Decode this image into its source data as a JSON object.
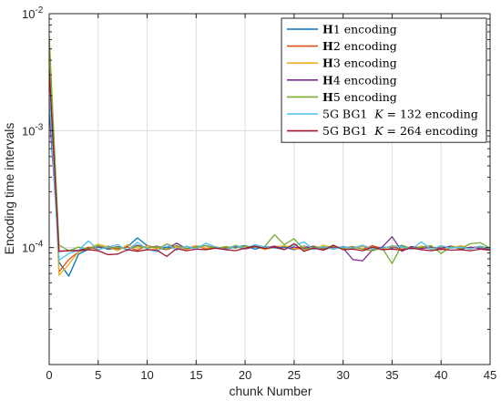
{
  "chart_data": {
    "type": "line",
    "title": "",
    "xlabel": "chunk Number",
    "ylabel": "Encoding time intervals",
    "xlim": [
      0,
      45
    ],
    "ylim": [
      1e-05,
      0.01
    ],
    "yscale": "log",
    "xticks": [
      0,
      5,
      10,
      15,
      20,
      25,
      30,
      35,
      40,
      45
    ],
    "yticks": [
      {
        "value": 0.0001,
        "base": "10",
        "exp": "-4"
      },
      {
        "value": 0.001,
        "base": "10",
        "exp": "-3"
      },
      {
        "value": 0.01,
        "base": "10",
        "exp": "-2"
      }
    ],
    "grid": true,
    "legend_position": "top-right",
    "x": [
      0,
      1,
      2,
      3,
      4,
      5,
      6,
      7,
      8,
      9,
      10,
      11,
      12,
      13,
      14,
      15,
      16,
      17,
      18,
      19,
      20,
      21,
      22,
      23,
      24,
      25,
      26,
      27,
      28,
      29,
      30,
      31,
      32,
      33,
      34,
      35,
      36,
      37,
      38,
      39,
      40,
      41,
      42,
      43,
      44,
      45
    ],
    "series": [
      {
        "name": "H1 encoding",
        "bold": "H",
        "rest": "1 encoding",
        "color": "#0072BD",
        "values": [
          0.0035,
          7.5e-05,
          5.7e-05,
          8.8e-05,
          9.7e-05,
          0.000103,
          9.7e-05,
          9.8e-05,
          0.000102,
          0.000121,
          0.000104,
          9.8e-05,
          0.000101,
          0.000103,
          9.7e-05,
          0.000102,
          0.000104,
          9.9e-05,
          9.7e-05,
          0.000101,
          0.000104,
          9.7e-05,
          0.000102,
          9.9e-05,
          0.000101,
          9.6e-05,
          0.000103,
          9.9e-05,
          0.000101,
          9.7e-05,
          0.000102,
          9.8e-05,
          0.000103,
          9.7e-05,
          0.000101,
          9.9e-05,
          0.000104,
          9.8e-05,
          0.000102,
          9.7e-05,
          0.000101,
          9.9e-05,
          0.000103,
          9.8e-05,
          0.000101,
          9.7e-05
        ]
      },
      {
        "name": "H2 encoding",
        "bold": "H",
        "rest": "2 encoding",
        "color": "#D95319",
        "values": [
          0.006,
          6.2e-05,
          7.9e-05,
          9.2e-05,
          0.000101,
          9.6e-05,
          0.000103,
          9.7e-05,
          0.000101,
          9.5e-05,
          0.000104,
          9.9e-05,
          9.6e-05,
          0.000102,
          9.8e-05,
          0.000104,
          9.7e-05,
          0.000101,
          9.9e-05,
          0.000103,
          9.7e-05,
          0.000102,
          9.8e-05,
          0.000101,
          0.000104,
          9.7e-05,
          9.9e-05,
          0.000103,
          9.6e-05,
          0.000101,
          9.9e-05,
          0.000102,
          9.7e-05,
          0.000104,
          9.8e-05,
          0.000101,
          9.7e-05,
          0.000102,
          9.9e-05,
          0.000101,
          9.6e-05,
          0.000103,
          9.8e-05,
          0.0001,
          0.000102,
          9.7e-05
        ]
      },
      {
        "name": "H3 encoding",
        "bold": "H",
        "rest": "3 encoding",
        "color": "#EDB120",
        "values": [
          0.0052,
          5.8e-05,
          7.2e-05,
          9.2e-05,
          9.9e-05,
          0.000107,
          0.000101,
          9.4e-05,
          0.000106,
          9.9e-05,
          0.000103,
          9.7e-05,
          0.000108,
          0.000101,
          9.6e-05,
          0.000104,
          9.9e-05,
          0.000102,
          9.7e-05,
          0.000105,
          9.9e-05,
          0.000103,
          9.6e-05,
          0.000101,
          0.000104,
          9.8e-05,
          0.000102,
          9.7e-05,
          0.000105,
          9.9e-05,
          0.000101,
          9.7e-05,
          0.000103,
          9.9e-05,
          9.6e-05,
          0.000104,
          0.000101,
          9.8e-05,
          0.000103,
          9.7e-05,
          0.000101,
          9.9e-05,
          0.000104,
          9.8e-05,
          0.000102,
          9.9e-05
        ]
      },
      {
        "name": "H4 encoding",
        "bold": "H",
        "rest": "4 encoding",
        "color": "#7E2F8E",
        "values": [
          0.0015,
          9.3e-05,
          9.4e-05,
          9.5e-05,
          9.9e-05,
          0.000101,
          9.8e-05,
          0.000102,
          9.6e-05,
          0.000105,
          9.9e-05,
          0.000103,
          9.7e-05,
          0.000109,
          9.8e-05,
          0.000101,
          0.000104,
          9.9e-05,
          9.7e-05,
          0.000102,
          9.8e-05,
          0.000101,
          9.9e-05,
          0.000103,
          9.7e-05,
          0.000101,
          9.9e-05,
          0.000102,
          9.8e-05,
          0.000101,
          9.9e-05,
          7.9e-05,
          7.7e-05,
          9.6e-05,
          0.000101,
          0.000124,
          9.3e-05,
          0.000102,
          9.8e-05,
          0.000101,
          9.9e-05,
          0.000103,
          9.7e-05,
          0.000101,
          9.8e-05,
          9.6e-05
        ]
      },
      {
        "name": "H5 encoding",
        "bold": "H",
        "rest": "5 encoding",
        "color": "#77AC30",
        "values": [
          0.0065,
          0.000105,
          9.4e-05,
          0.000101,
          9.7e-05,
          0.000104,
          9.9e-05,
          0.000101,
          9.6e-05,
          0.000103,
          9.9e-05,
          0.000102,
          9.7e-05,
          0.000104,
          9.9e-05,
          0.000101,
          0.000104,
          9.8e-05,
          0.000102,
          9.9e-05,
          0.000103,
          0.000101,
          0.000102,
          0.000129,
          0.000106,
          0.000119,
          9.6e-05,
          0.000101,
          9.9e-05,
          0.000103,
          9.8e-05,
          0.000101,
          9.7e-05,
          9.4e-05,
          9.9e-05,
          7.3e-05,
          0.000105,
          9.7e-05,
          0.000101,
          0.000104,
          8.9e-05,
          0.000102,
          9.8e-05,
          0.000108,
          0.00011,
          9.9e-05
        ]
      },
      {
        "name": "5G BG1 K = 132 encoding",
        "pre": "5G BG1 ",
        "italic": "K",
        "rest": " = 132 encoding",
        "color": "#4DBEEE",
        "values": [
          0.002,
          7.8e-05,
          8.9e-05,
          9.5e-05,
          0.000114,
          9.6e-05,
          0.000101,
          0.000106,
          9.4e-05,
          0.000111,
          9.7e-05,
          9.2e-05,
          0.000107,
          9.5e-05,
          0.000103,
          9.7e-05,
          0.000109,
          0.000101,
          9.6e-05,
          0.000104,
          9.8e-05,
          0.000106,
          0.000101,
          9.9e-05,
          9.7e-05,
          0.000104,
          0.000112,
          9.6e-05,
          0.000102,
          9.7e-05,
          0.000101,
          9.9e-05,
          0.000105,
          9.7e-05,
          9.9e-05,
          0.000103,
          0.000101,
          9.7e-05,
          0.000112,
          9.6e-05,
          0.000104,
          9.9e-05,
          0.000101,
          9.7e-05,
          0.000103,
          9.8e-05
        ]
      },
      {
        "name": "5G BG1 K = 264 encoding",
        "pre": "5G BG1 ",
        "italic": "K",
        "rest": " = 264 encoding",
        "color": "#A2142F",
        "values": [
          0.0034,
          9.3e-05,
          9.4e-05,
          9.4e-05,
          9.6e-05,
          9.4e-05,
          8.7e-05,
          8.8e-05,
          9.6e-05,
          9.3e-05,
          9.6e-05,
          9.5e-05,
          8.4e-05,
          9.8e-05,
          9.4e-05,
          9.7e-05,
          9.6e-05,
          9.9e-05,
          9.6e-05,
          9.4e-05,
          9.9e-05,
          0.000103,
          9.8e-05,
          0.000101,
          9.6e-05,
          0.000108,
          9.3e-05,
          9.9e-05,
          9.5e-05,
          0.000105,
          9.6e-05,
          9.7e-05,
          9.4e-05,
          0.000101,
          9.6e-05,
          9.7e-05,
          9.5e-05,
          9.9e-05,
          9.6e-05,
          9.4e-05,
          9.7e-05,
          9.5e-05,
          9.6e-05,
          9.4e-05,
          9.7e-05,
          9.5e-05
        ]
      }
    ]
  }
}
